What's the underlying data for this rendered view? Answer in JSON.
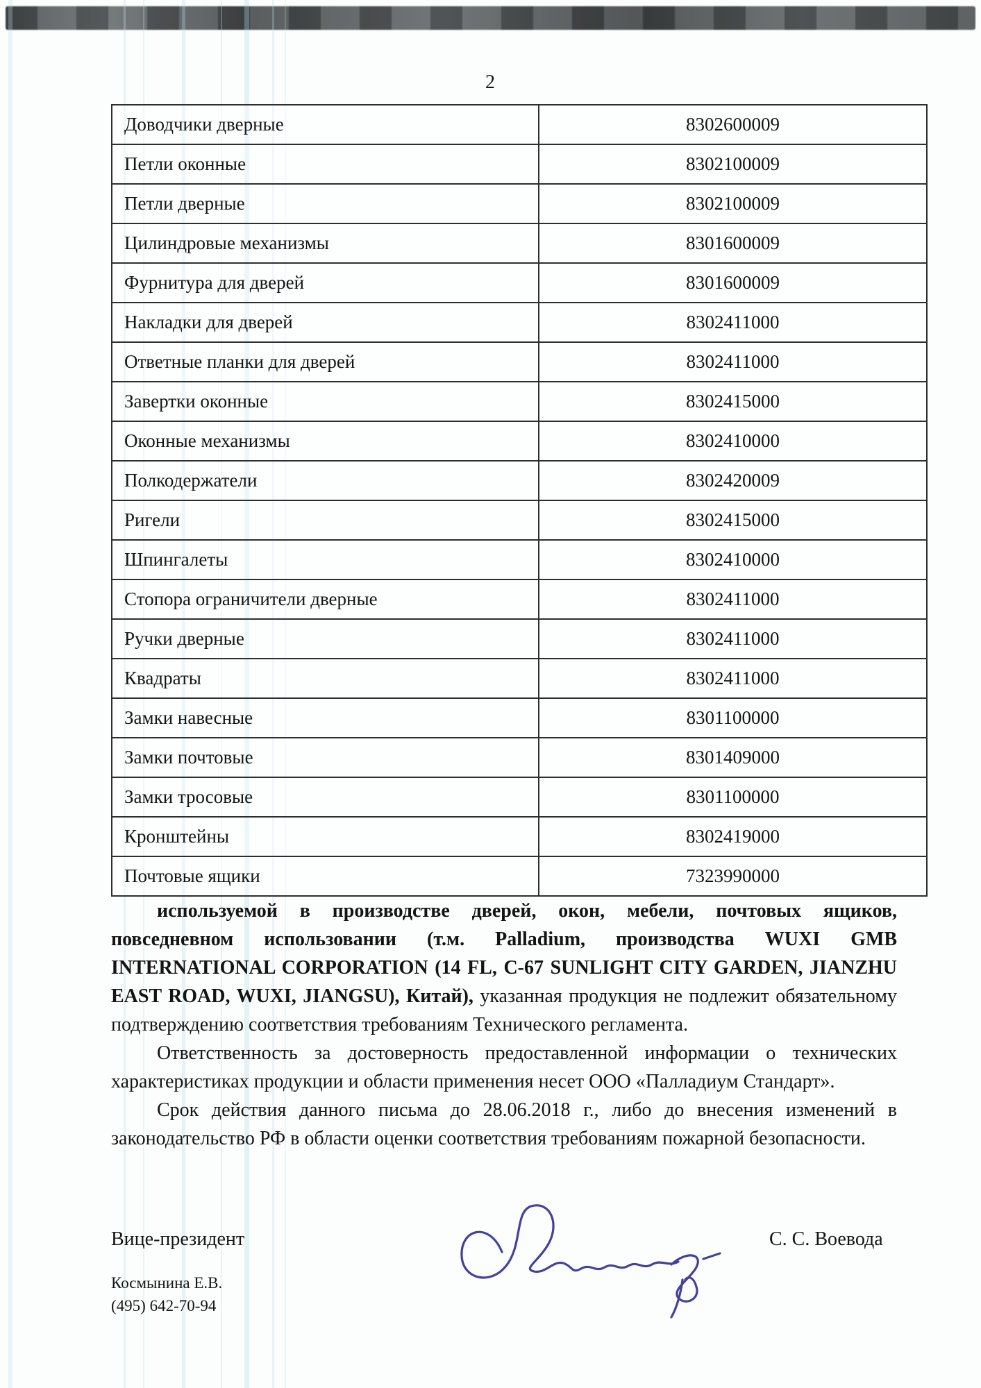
{
  "page": {
    "number": "2"
  },
  "table": {
    "rows": [
      {
        "name": "Доводчики дверные",
        "code": "8302600009"
      },
      {
        "name": "Петли оконные",
        "code": "8302100009"
      },
      {
        "name": "Петли дверные",
        "code": "8302100009"
      },
      {
        "name": "Цилиндровые механизмы",
        "code": "8301600009"
      },
      {
        "name": "Фурнитура для дверей",
        "code": "8301600009"
      },
      {
        "name": "Накладки для дверей",
        "code": "8302411000"
      },
      {
        "name": "Ответные планки для дверей",
        "code": "8302411000"
      },
      {
        "name": "Завертки оконные",
        "code": "8302415000"
      },
      {
        "name": "Оконные механизмы",
        "code": "8302410000"
      },
      {
        "name": "Полкодержатели",
        "code": "8302420009"
      },
      {
        "name": "Ригели",
        "code": "8302415000"
      },
      {
        "name": "Шпингалеты",
        "code": "8302410000"
      },
      {
        "name": "Стопора ограничители дверные",
        "code": "8302411000"
      },
      {
        "name": "Ручки дверные",
        "code": "8302411000"
      },
      {
        "name": "Квадраты",
        "code": "8302411000"
      },
      {
        "name": "Замки навесные",
        "code": "8301100000"
      },
      {
        "name": "Замки почтовые",
        "code": "8301409000"
      },
      {
        "name": "Замки тросовые",
        "code": "8301100000"
      },
      {
        "name": "Кронштейны",
        "code": "8302419000"
      },
      {
        "name": "Почтовые ящики",
        "code": "7323990000"
      }
    ]
  },
  "paragraphs": {
    "p1_runs": [
      {
        "text": "используемой в производстве дверей, окон, мебели, почтовых ящиков, повседневном использовании (т.м. Palladium, производства WUXI GMB INTERNATIONAL CORPORATION (14 FL, C-67 SUNLIGHT CITY GARDEN, JIANZHU EAST ROAD, WUXI, JIANGSU), Китай), ",
        "bold": true
      },
      {
        "text": "указанная продукция не подлежит обязательному подтверждению соответствия требованиям Технического регламента.",
        "bold": false
      }
    ],
    "p2": "Ответственность за достоверность предоставленной информации о технических характеристиках продукции и области применения несет ООО «Палладиум Стандарт».",
    "p3": "Срок действия данного письма до 28.06.2018 г., либо до внесения изменений в законодательство РФ в области оценки соответствия требованиям пожарной безопасности."
  },
  "signature": {
    "title": "Вице-президент",
    "name": "С. С. Воевода",
    "ink_color": "#43409e"
  },
  "contact": {
    "person": "Космынина Е.В.",
    "phone": "(495) 642-70-94"
  }
}
